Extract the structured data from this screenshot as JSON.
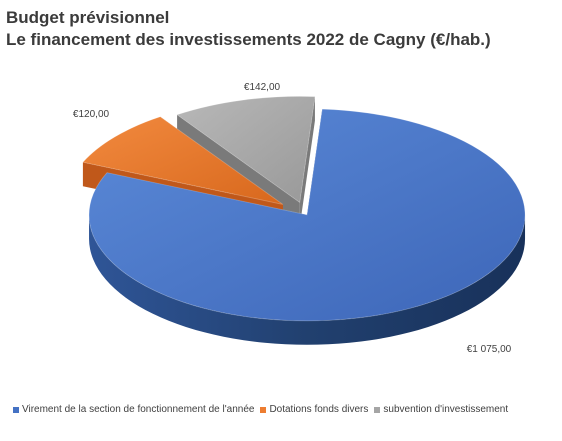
{
  "title": {
    "line1": "Budget prévisionnel",
    "line2": "Le financement des investissements 2022 de Cagny (€/hab.)"
  },
  "chart_data": {
    "type": "pie",
    "style": "3d-exploded",
    "title": "Budget prévisionnel\nLe financement des investissements 2022 de Cagny (€/hab.)",
    "legend_position": "bottom",
    "series": [
      {
        "values": [
          1075.0,
          120.0,
          142.0
        ]
      }
    ],
    "slices": [
      {
        "label": "Virement de la section de fonctionnement de l'année",
        "value": 1075.0,
        "data_label": "€1 075,00",
        "color": "#4472C4"
      },
      {
        "label": "Dotations fonds divers",
        "value": 120.0,
        "data_label": "€120,00",
        "color": "#ED7D31"
      },
      {
        "label": "subvention d'investissement",
        "value": 142.0,
        "data_label": "€142,00",
        "color": "#A5A5A5"
      }
    ]
  }
}
